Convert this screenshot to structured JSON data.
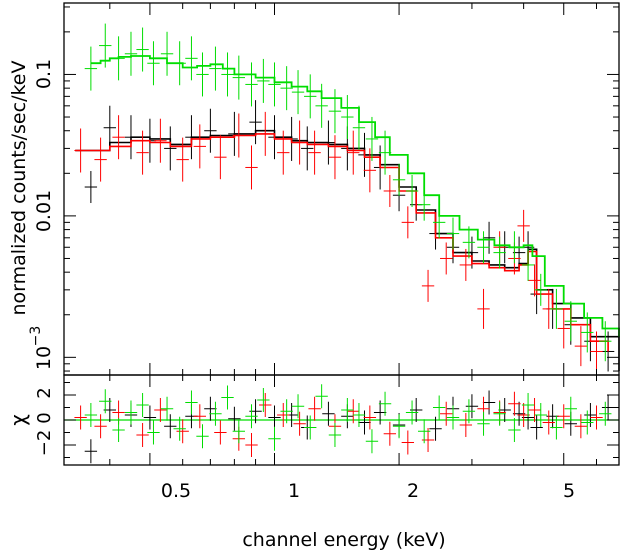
{
  "chart_data": [
    {
      "type": "line",
      "panel": "spectrum",
      "xlabel": "channel energy (keV)",
      "ylabel": "normalized counts/sec/keV",
      "xscale": "log",
      "yscale": "log",
      "xlim": [
        0.31,
        6.8
      ],
      "ylim": [
        0.00075,
        0.32
      ],
      "ytick_labels": [
        {
          "value": 0.1,
          "label": "0.1"
        },
        {
          "value": 0.01,
          "label": "0.01"
        },
        {
          "value": 0.001,
          "label": "10",
          "exponent": "−3"
        }
      ],
      "series": [
        {
          "color": "#000000",
          "data_x": [
            0.36,
            0.4,
            0.45,
            0.5,
            0.56,
            0.63,
            0.7,
            0.8,
            0.9,
            1.0,
            1.1,
            1.2,
            1.35,
            1.5,
            1.65,
            1.8,
            2.0,
            2.2,
            2.45,
            2.7,
            3.0,
            3.3,
            3.6,
            3.9,
            4.1,
            4.3,
            4.7,
            5.2,
            5.8,
            6.4
          ],
          "data_y": [
            0.016,
            0.042,
            0.036,
            0.034,
            0.03,
            0.036,
            0.04,
            0.038,
            0.046,
            0.036,
            0.035,
            0.03,
            0.033,
            0.03,
            0.027,
            0.022,
            0.014,
            0.012,
            0.0075,
            0.006,
            0.0055,
            0.007,
            0.006,
            0.0055,
            0.006,
            0.0028,
            0.0022,
            0.0017,
            0.0013,
            0.0011
          ],
          "model_x": [
            0.33,
            0.4,
            0.45,
            0.5,
            0.56,
            0.63,
            0.7,
            0.8,
            0.9,
            1.0,
            1.1,
            1.2,
            1.35,
            1.5,
            1.65,
            1.8,
            2.0,
            2.2,
            2.45,
            2.7,
            3.0,
            3.3,
            3.6,
            3.9,
            4.1,
            4.3,
            4.7,
            5.2,
            5.8,
            6.8
          ],
          "model_y": [
            0.029,
            0.033,
            0.036,
            0.035,
            0.032,
            0.036,
            0.037,
            0.038,
            0.04,
            0.036,
            0.034,
            0.033,
            0.032,
            0.03,
            0.027,
            0.023,
            0.016,
            0.011,
            0.0075,
            0.0055,
            0.0048,
            0.0045,
            0.0043,
            0.0046,
            0.0058,
            0.003,
            0.0024,
            0.0019,
            0.0014,
            0.0008
          ],
          "resid_y": [
            -2.5,
            0.8,
            0.4,
            0.2,
            -0.5,
            0.3,
            0.9,
            0.1,
            0.7,
            0.2,
            0.4,
            -0.6,
            0.5,
            0.3,
            -0.2,
            0.6,
            -0.4,
            0.8,
            -0.7,
            0.9,
            1.1,
            1.4,
            0.8,
            0.5,
            0.2,
            -0.6,
            0.3,
            -0.3,
            0.4,
            1.0
          ]
        },
        {
          "color": "#ff0000",
          "data_x": [
            0.34,
            0.38,
            0.42,
            0.48,
            0.53,
            0.6,
            0.66,
            0.74,
            0.82,
            0.88,
            0.95,
            1.05,
            1.15,
            1.25,
            1.4,
            1.55,
            1.7,
            1.9,
            2.1,
            2.35,
            2.6,
            2.9,
            3.2,
            3.5,
            3.8,
            4.0,
            4.25,
            4.6,
            5.0,
            5.5,
            6.0
          ],
          "data_y": [
            0.029,
            0.025,
            0.036,
            0.028,
            0.034,
            0.025,
            0.031,
            0.026,
            0.037,
            0.022,
            0.038,
            0.028,
            0.033,
            0.028,
            0.026,
            0.028,
            0.021,
            0.015,
            0.009,
            0.0032,
            0.005,
            0.0045,
            0.0022,
            0.006,
            0.005,
            0.0085,
            0.0035,
            0.0022,
            0.0016,
            0.0012,
            0.0011
          ],
          "model_x": [
            0.33,
            0.4,
            0.45,
            0.5,
            0.56,
            0.63,
            0.7,
            0.8,
            0.9,
            1.0,
            1.1,
            1.2,
            1.35,
            1.5,
            1.65,
            1.8,
            2.0,
            2.2,
            2.45,
            2.7,
            3.0,
            3.3,
            3.6,
            3.9,
            4.1,
            4.3,
            4.7,
            5.2,
            5.8,
            6.4
          ],
          "model_y": [
            0.029,
            0.031,
            0.034,
            0.033,
            0.031,
            0.035,
            0.036,
            0.037,
            0.038,
            0.035,
            0.033,
            0.032,
            0.031,
            0.029,
            0.026,
            0.022,
            0.015,
            0.0105,
            0.007,
            0.0052,
            0.0046,
            0.0043,
            0.0041,
            0.0045,
            0.0056,
            0.0028,
            0.0022,
            0.0017,
            0.0013,
            0.0011
          ],
          "resid_y": [
            0.2,
            -0.5,
            0.6,
            -1.2,
            0.8,
            -0.9,
            0.3,
            -1.0,
            -1.5,
            -2.0,
            1.2,
            0.4,
            -0.3,
            0.9,
            -0.5,
            0.7,
            0.2,
            -1.1,
            -1.8,
            -1.6,
            0.5,
            -0.4,
            0.9,
            0.6,
            1.3,
            0.4,
            0.8,
            -0.2,
            0.3,
            -0.5,
            0.2
          ]
        },
        {
          "color": "#00dd00",
          "data_x": [
            0.36,
            0.39,
            0.42,
            0.45,
            0.48,
            0.51,
            0.55,
            0.59,
            0.63,
            0.67,
            0.72,
            0.77,
            0.82,
            0.88,
            0.94,
            1.0,
            1.07,
            1.14,
            1.22,
            1.3,
            1.4,
            1.5,
            1.6,
            1.72,
            1.85,
            2.0,
            2.15,
            2.3,
            2.5,
            2.7,
            2.95,
            3.2,
            3.5,
            3.8,
            4.1,
            4.4,
            4.8,
            5.2,
            5.7,
            6.3
          ],
          "data_y": [
            0.11,
            0.16,
            0.13,
            0.14,
            0.15,
            0.12,
            0.14,
            0.12,
            0.13,
            0.1,
            0.11,
            0.1,
            0.095,
            0.085,
            0.09,
            0.085,
            0.08,
            0.075,
            0.07,
            0.06,
            0.055,
            0.05,
            0.042,
            0.035,
            0.028,
            0.018,
            0.015,
            0.012,
            0.009,
            0.0075,
            0.0065,
            0.006,
            0.0055,
            0.006,
            0.0045,
            0.003,
            0.0022,
            0.0018,
            0.0015,
            0.0013
          ],
          "model_x": [
            0.36,
            0.38,
            0.4,
            0.42,
            0.45,
            0.48,
            0.5,
            0.55,
            0.6,
            0.65,
            0.7,
            0.75,
            0.8,
            0.9,
            1.0,
            1.1,
            1.2,
            1.3,
            1.45,
            1.6,
            1.75,
            1.9,
            2.1,
            2.3,
            2.5,
            2.8,
            3.1,
            3.4,
            3.7,
            4.0,
            4.2,
            4.5,
            5.0,
            5.6,
            6.2,
            6.8
          ],
          "model_y": [
            0.12,
            0.125,
            0.13,
            0.133,
            0.135,
            0.135,
            0.13,
            0.12,
            0.112,
            0.115,
            0.118,
            0.11,
            0.1,
            0.095,
            0.088,
            0.082,
            0.076,
            0.068,
            0.058,
            0.046,
            0.036,
            0.027,
            0.02,
            0.014,
            0.01,
            0.008,
            0.0068,
            0.0062,
            0.006,
            0.0062,
            0.0052,
            0.0032,
            0.0024,
            0.0019,
            0.0016,
            0.0014
          ],
          "resid_y": [
            0.4,
            1.5,
            -0.8,
            0.6,
            1.2,
            -1.0,
            0.9,
            -0.7,
            1.4,
            -1.3,
            0.5,
            1.8,
            -0.9,
            0.3,
            1.6,
            -1.5,
            0.7,
            1.1,
            -0.6,
            1.9,
            -1.2,
            0.8,
            0.4,
            -1.7,
            1.3,
            -0.5,
            0.6,
            -0.9,
            1.0,
            0.2,
            0.7,
            -0.3,
            0.5,
            -0.8,
            1.2,
            0.4,
            -0.6,
            0.9,
            -0.2,
            0.5
          ]
        }
      ]
    },
    {
      "type": "scatter",
      "panel": "residuals",
      "ylabel": "χ",
      "xscale": "log",
      "xlim": [
        0.31,
        6.8
      ],
      "ylim": [
        -3.6,
        3.6
      ],
      "ytick_labels": [
        {
          "value": 2,
          "label": "2"
        },
        {
          "value": 0,
          "label": "0"
        },
        {
          "value": -2,
          "label": "−2"
        }
      ],
      "xtick_labels": [
        {
          "value": 0.5,
          "label": "0.5"
        },
        {
          "value": 1,
          "label": "1"
        },
        {
          "value": 2,
          "label": "2"
        },
        {
          "value": 5,
          "label": "5"
        }
      ]
    }
  ]
}
